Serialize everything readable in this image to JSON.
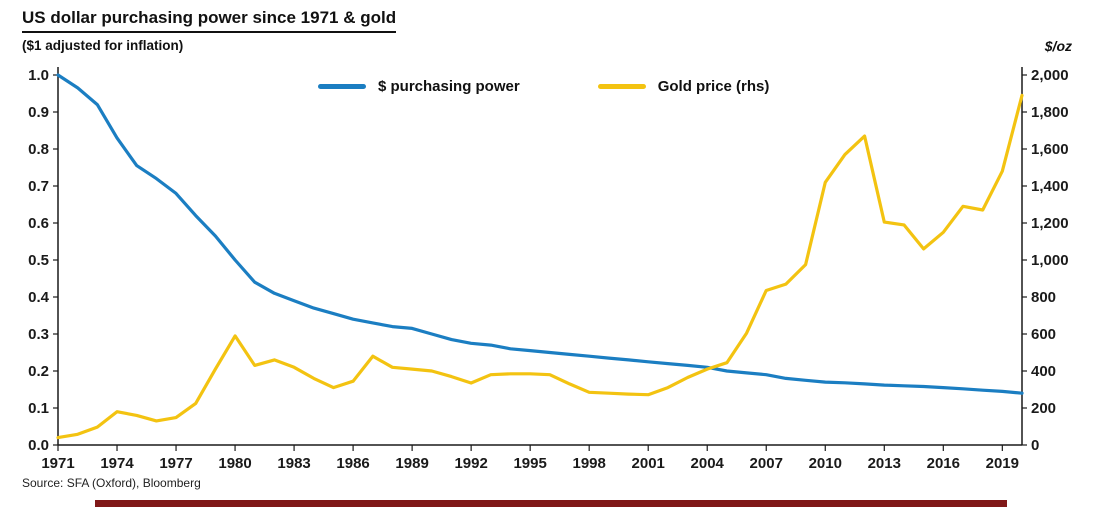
{
  "title": "US dollar purchasing power since 1971 & gold",
  "subtitle": "($1 adjusted for inflation)",
  "right_axis_unit": "$/oz",
  "source": "Source: SFA (Oxford), Bloomberg",
  "colors": {
    "purchasing_power_line": "#1b7ec2",
    "gold_line": "#f3c311",
    "axis": "#1a1a1a",
    "accent_bar": "#801818"
  },
  "legend": [
    {
      "label": "$ purchasing power"
    },
    {
      "label": "Gold price (rhs)"
    }
  ],
  "chart_data": {
    "type": "line",
    "title": "US dollar purchasing power since 1971 & gold",
    "subtitle": "($1 adjusted for inflation)",
    "grid": false,
    "legend_position": "top-center",
    "x": [
      1971,
      1972,
      1973,
      1974,
      1975,
      1976,
      1977,
      1978,
      1979,
      1980,
      1981,
      1982,
      1983,
      1984,
      1985,
      1986,
      1987,
      1988,
      1989,
      1990,
      1991,
      1992,
      1993,
      1994,
      1995,
      1996,
      1997,
      1998,
      1999,
      2000,
      2001,
      2002,
      2003,
      2004,
      2005,
      2006,
      2007,
      2008,
      2009,
      2010,
      2011,
      2012,
      2013,
      2014,
      2015,
      2016,
      2017,
      2018,
      2019,
      2020
    ],
    "series": [
      {
        "name": "$ purchasing power",
        "axis": "left",
        "color": "#1b7ec2",
        "values": [
          1.0,
          0.965,
          0.92,
          0.83,
          0.755,
          0.72,
          0.68,
          0.62,
          0.565,
          0.5,
          0.44,
          0.41,
          0.39,
          0.37,
          0.355,
          0.34,
          0.33,
          0.32,
          0.315,
          0.3,
          0.285,
          0.275,
          0.27,
          0.26,
          0.255,
          0.25,
          0.245,
          0.24,
          0.235,
          0.23,
          0.225,
          0.22,
          0.215,
          0.21,
          0.2,
          0.195,
          0.19,
          0.18,
          0.175,
          0.17,
          0.168,
          0.165,
          0.162,
          0.16,
          0.158,
          0.155,
          0.152,
          0.148,
          0.145,
          0.14
        ]
      },
      {
        "name": "Gold price (rhs)",
        "axis": "right",
        "color": "#f3c311",
        "values": [
          40,
          58,
          97,
          180,
          160,
          130,
          148,
          225,
          410,
          590,
          430,
          460,
          420,
          360,
          310,
          345,
          480,
          420,
          410,
          400,
          370,
          335,
          380,
          385,
          385,
          380,
          330,
          285,
          280,
          275,
          272,
          310,
          365,
          410,
          445,
          605,
          835,
          870,
          975,
          1420,
          1570,
          1670,
          1205,
          1190,
          1060,
          1150,
          1290,
          1270,
          1480,
          1890
        ]
      }
    ],
    "left_axis": {
      "min": 0,
      "max": 1,
      "tick_values": [
        0,
        0.1,
        0.2,
        0.3,
        0.4,
        0.5,
        0.6,
        0.7,
        0.8,
        0.9,
        1.0
      ],
      "tick_labels": [
        "0.0",
        "0.1",
        "0.2",
        "0.3",
        "0.4",
        "0.5",
        "0.6",
        "0.7",
        "0.8",
        "0.9",
        "1.0"
      ]
    },
    "right_axis": {
      "min": 0,
      "max": 2000,
      "unit": "$/oz",
      "tick_values": [
        0,
        200,
        400,
        600,
        800,
        1000,
        1200,
        1400,
        1600,
        1800,
        2000
      ],
      "tick_labels": [
        "0",
        "200",
        "400",
        "600",
        "800",
        "1,000",
        "1,200",
        "1,400",
        "1,600",
        "1,800",
        "2,000"
      ]
    },
    "x_axis": {
      "tick_values": [
        1971,
        1974,
        1977,
        1980,
        1983,
        1986,
        1989,
        1992,
        1995,
        1998,
        2001,
        2004,
        2007,
        2010,
        2013,
        2016,
        2019
      ],
      "tick_labels": [
        "1971",
        "1974",
        "1977",
        "1980",
        "1983",
        "1986",
        "1989",
        "1992",
        "1995",
        "1998",
        "2001",
        "2004",
        "2007",
        "2010",
        "2013",
        "2016",
        "2019"
      ]
    }
  }
}
